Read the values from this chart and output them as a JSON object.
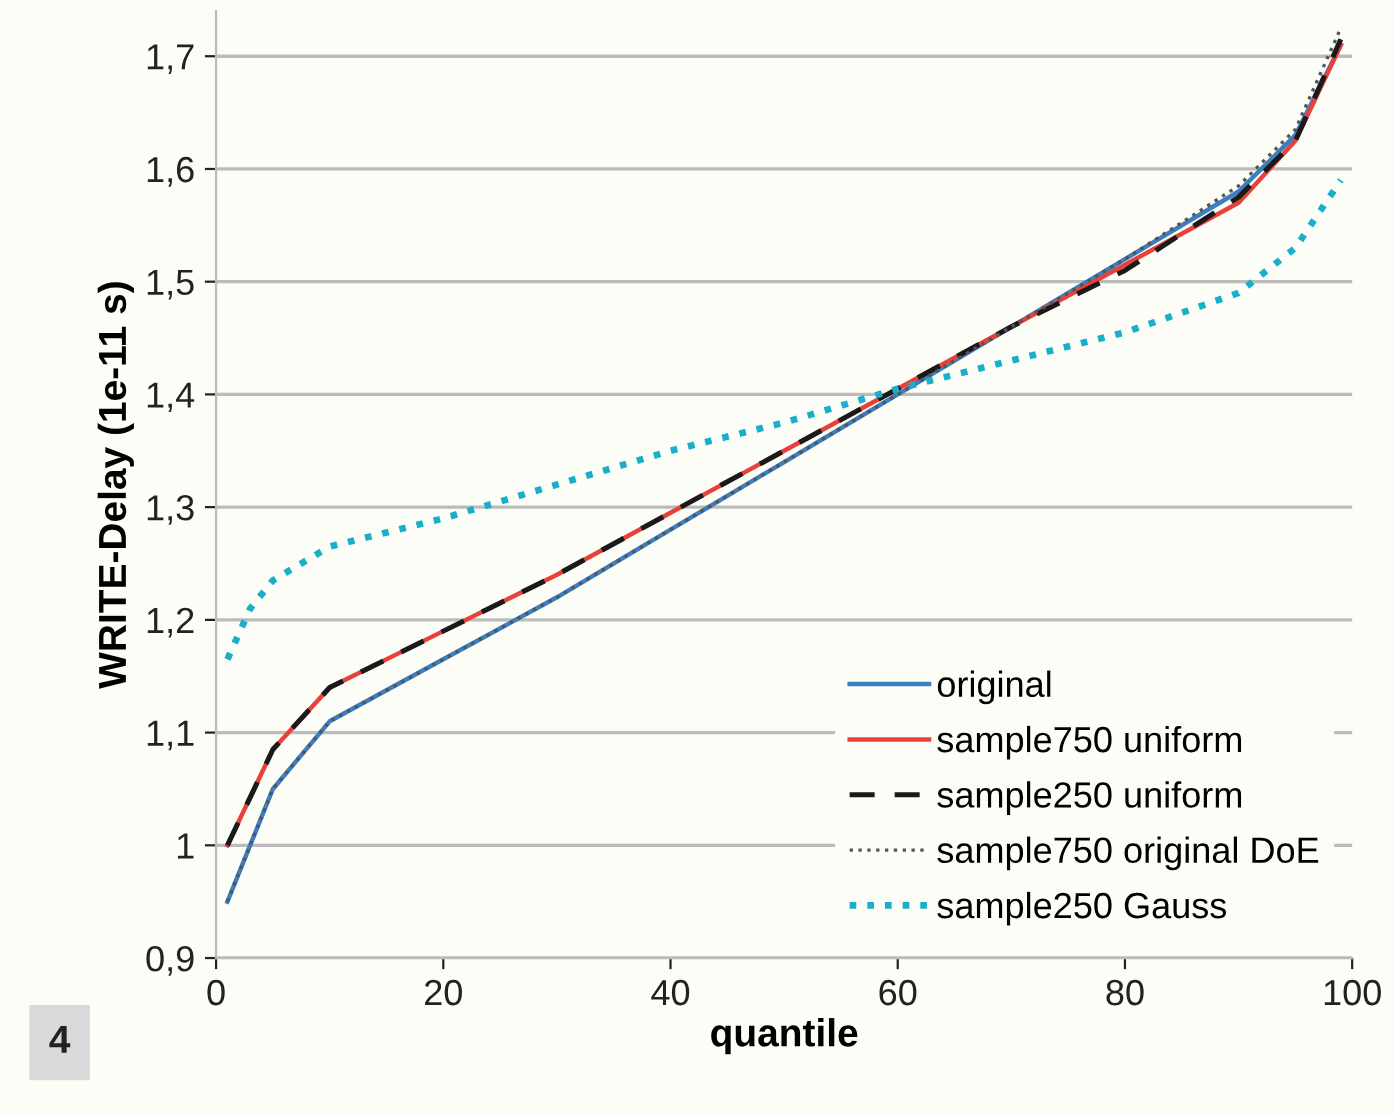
{
  "chart_data": {
    "type": "line",
    "xlabel": "quantile",
    "ylabel": "WRITE-Delay (1e-11 s)",
    "xlim": [
      0,
      100
    ],
    "xticks": [
      0,
      20,
      40,
      60,
      80,
      100
    ],
    "ylim": [
      0.9,
      1.74
    ],
    "yticks": [
      {
        "value": 0.9,
        "label": "0,9"
      },
      {
        "value": 1.0,
        "label": "1"
      },
      {
        "value": 1.1,
        "label": "1,1"
      },
      {
        "value": 1.2,
        "label": "1,2"
      },
      {
        "value": 1.3,
        "label": "1,3"
      },
      {
        "value": 1.4,
        "label": "1,4"
      },
      {
        "value": 1.5,
        "label": "1,5"
      },
      {
        "value": 1.6,
        "label": "1,6"
      },
      {
        "value": 1.7,
        "label": "1,7"
      }
    ],
    "grid": "y",
    "legend": "bottom right",
    "annotations": [
      "4"
    ],
    "series": [
      {
        "name": "original",
        "color": "#3a7fc1",
        "line_style": "solid",
        "x": [
          1,
          5,
          10,
          20,
          30,
          40,
          50,
          60,
          70,
          80,
          90,
          95,
          99
        ],
        "values": [
          0.95,
          1.05,
          1.11,
          1.165,
          1.22,
          1.28,
          1.34,
          1.4,
          1.46,
          1.52,
          1.58,
          1.63,
          1.71
        ]
      },
      {
        "name": "sample750 uniform",
        "color": "#e8413a",
        "line_style": "solid",
        "x": [
          1,
          5,
          10,
          20,
          30,
          40,
          50,
          60,
          70,
          80,
          90,
          95,
          99
        ],
        "values": [
          1.0,
          1.085,
          1.14,
          1.19,
          1.24,
          1.295,
          1.35,
          1.405,
          1.46,
          1.515,
          1.57,
          1.625,
          1.71
        ]
      },
      {
        "name": "sample250 uniform",
        "color": "#1a1a1a",
        "line_style": "dashed",
        "x": [
          1,
          5,
          10,
          20,
          30,
          40,
          50,
          60,
          70,
          80,
          90,
          95,
          99
        ],
        "values": [
          1.0,
          1.085,
          1.14,
          1.19,
          1.24,
          1.295,
          1.35,
          1.405,
          1.46,
          1.51,
          1.575,
          1.625,
          1.715
        ]
      },
      {
        "name": "sample750 original DoE",
        "color": "#555555",
        "line_style": "dotted",
        "x": [
          1,
          5,
          10,
          20,
          30,
          40,
          50,
          60,
          70,
          80,
          90,
          95,
          99
        ],
        "values": [
          0.95,
          1.05,
          1.11,
          1.165,
          1.22,
          1.28,
          1.34,
          1.4,
          1.46,
          1.52,
          1.585,
          1.635,
          1.725
        ]
      },
      {
        "name": "sample250 Gauss",
        "color": "#1aafc9",
        "line_style": "dotted",
        "x": [
          1,
          3,
          5,
          10,
          20,
          30,
          40,
          50,
          60,
          70,
          80,
          90,
          95,
          99
        ],
        "values": [
          1.165,
          1.21,
          1.235,
          1.265,
          1.29,
          1.32,
          1.35,
          1.375,
          1.405,
          1.43,
          1.455,
          1.49,
          1.53,
          1.59
        ]
      }
    ]
  }
}
